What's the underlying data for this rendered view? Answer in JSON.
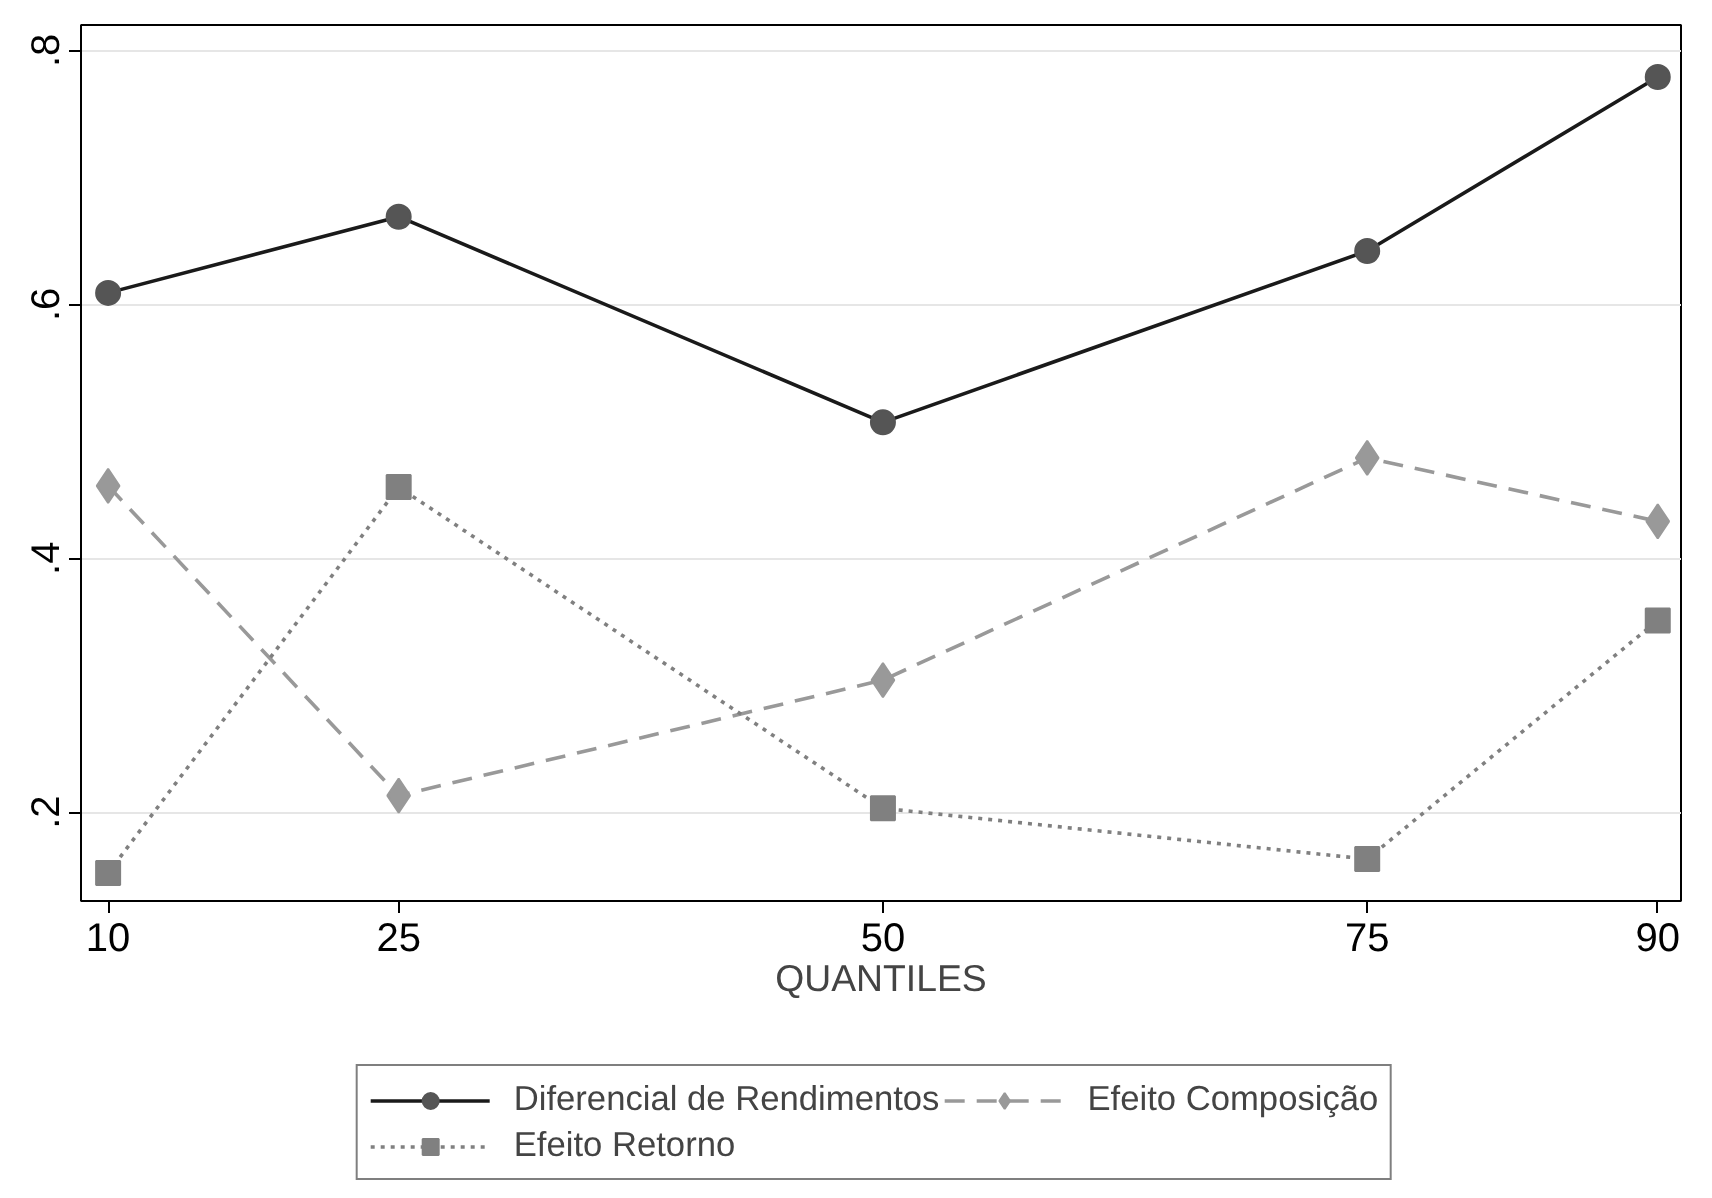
{
  "chart_data": {
    "type": "line",
    "xlabel": "QUANTILES",
    "x": [
      10,
      25,
      50,
      75,
      90
    ],
    "xlim": [
      8.6,
      91.2
    ],
    "xticks": [
      10,
      25,
      50,
      75,
      90
    ],
    "ylim": [
      0.13,
      0.82
    ],
    "yticks": [
      {
        "value": 0.2,
        "label": ".2"
      },
      {
        "value": 0.4,
        "label": ".4"
      },
      {
        "value": 0.6,
        "label": ".6"
      },
      {
        "value": 0.8,
        "label": ".8"
      }
    ],
    "grid": "y",
    "legend": "bottom",
    "series": [
      {
        "name": "Diferencial de Rendimentos",
        "color": "#555555",
        "marker": "circle",
        "line_style": "solid",
        "values": [
          0.609,
          0.669,
          0.507,
          0.642,
          0.779
        ]
      },
      {
        "name": "Efeito Composição",
        "color": "#999999",
        "marker": "diamond",
        "line_style": "dashed",
        "values": [
          0.457,
          0.213,
          0.304,
          0.479,
          0.429
        ]
      },
      {
        "name": "Efeito Retorno",
        "color": "#808080",
        "marker": "square",
        "line_style": "dotted",
        "values": [
          0.152,
          0.456,
          0.203,
          0.163,
          0.351
        ]
      }
    ]
  }
}
